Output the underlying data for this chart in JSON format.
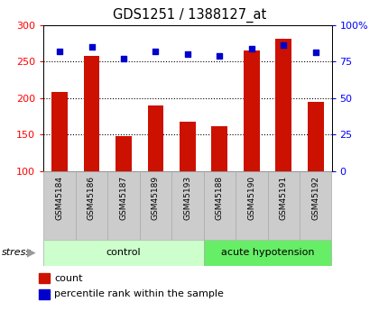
{
  "title": "GDS1251 / 1388127_at",
  "samples": [
    "GSM45184",
    "GSM45186",
    "GSM45187",
    "GSM45189",
    "GSM45193",
    "GSM45188",
    "GSM45190",
    "GSM45191",
    "GSM45192"
  ],
  "counts": [
    208,
    258,
    148,
    190,
    167,
    161,
    265,
    281,
    195
  ],
  "percentiles": [
    82,
    85,
    77,
    82,
    80,
    79,
    84,
    86,
    81
  ],
  "n_control": 5,
  "n_ah": 4,
  "bar_color": "#cc1100",
  "dot_color": "#0000cc",
  "ylim_left": [
    100,
    300
  ],
  "ylim_right": [
    0,
    100
  ],
  "yticks_left": [
    100,
    150,
    200,
    250,
    300
  ],
  "yticks_right": [
    0,
    25,
    50,
    75,
    100
  ],
  "ytick_labels_right": [
    "0",
    "25",
    "50",
    "75",
    "100%"
  ],
  "legend_count": "count",
  "legend_pct": "percentile rank within the sample",
  "bar_width": 0.5,
  "tick_label_bg": "#cccccc",
  "control_color": "#ccffcc",
  "ah_color": "#66ee66",
  "stress_arrow_color": "#999999"
}
